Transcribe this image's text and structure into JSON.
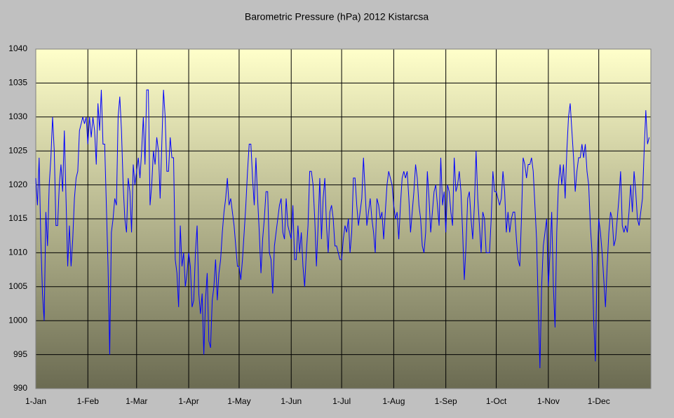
{
  "chart_data": {
    "type": "line",
    "title": "Barometric Pressure (hPa) 2012 Kistarcsa",
    "categories": [
      "1-Jan",
      null,
      null,
      null,
      null,
      null,
      null,
      null,
      null,
      null,
      null,
      null,
      null,
      null,
      null,
      null,
      null,
      null,
      null,
      null,
      null,
      null,
      null,
      null,
      null,
      null,
      null,
      null,
      null,
      null,
      null,
      "1-Feb",
      null,
      null,
      null,
      null,
      null,
      null,
      null,
      null,
      null,
      null,
      null,
      null,
      null,
      null,
      null,
      null,
      null,
      null,
      null,
      null,
      null,
      null,
      null,
      null,
      null,
      null,
      null,
      null,
      "1-Mar",
      null,
      null,
      null,
      null,
      null,
      null,
      null,
      null,
      null,
      null,
      null,
      null,
      null,
      null,
      null,
      null,
      null,
      null,
      null,
      null,
      null,
      null,
      null,
      null,
      null,
      null,
      null,
      null,
      null,
      null,
      "1-Apr",
      null,
      null,
      null,
      null,
      null,
      null,
      null,
      null,
      null,
      null,
      null,
      null,
      null,
      null,
      null,
      null,
      null,
      null,
      null,
      null,
      null,
      null,
      null,
      null,
      null,
      null,
      null,
      null,
      null,
      "1-May",
      null,
      null,
      null,
      null,
      null,
      null,
      null,
      null,
      null,
      null,
      null,
      null,
      null,
      null,
      null,
      null,
      null,
      null,
      null,
      null,
      null,
      null,
      null,
      null,
      null,
      null,
      null,
      null,
      null,
      null,
      "1-Jun",
      null,
      null,
      null,
      null,
      null,
      null,
      null,
      null,
      null,
      null,
      null,
      null,
      null,
      null,
      null,
      null,
      null,
      null,
      null,
      null,
      null,
      null,
      null,
      null,
      null,
      null,
      null,
      null,
      null,
      "1-Jul",
      null,
      null,
      null,
      null,
      null,
      null,
      null,
      null,
      null,
      null,
      null,
      null,
      null,
      null,
      null,
      null,
      null,
      null,
      null,
      null,
      null,
      null,
      null,
      null,
      null,
      null,
      null,
      null,
      null,
      null,
      "1-Aug",
      null,
      null,
      null,
      null,
      null,
      null,
      null,
      null,
      null,
      null,
      null,
      null,
      null,
      null,
      null,
      null,
      null,
      null,
      null,
      null,
      null,
      null,
      null,
      null,
      null,
      null,
      null,
      null,
      null,
      null,
      "1-Sep",
      null,
      null,
      null,
      null,
      null,
      null,
      null,
      null,
      null,
      null,
      null,
      null,
      null,
      null,
      null,
      null,
      null,
      null,
      null,
      null,
      null,
      null,
      null,
      null,
      null,
      null,
      null,
      null,
      null,
      "1-Oct",
      null,
      null,
      null,
      null,
      null,
      null,
      null,
      null,
      null,
      null,
      null,
      null,
      null,
      null,
      null,
      null,
      null,
      null,
      null,
      null,
      null,
      null,
      null,
      null,
      null,
      null,
      null,
      null,
      null,
      null,
      "1-Nov",
      null,
      null,
      null,
      null,
      null,
      null,
      null,
      null,
      null,
      null,
      null,
      null,
      null,
      null,
      null,
      null,
      null,
      null,
      null,
      null,
      null,
      null,
      null,
      null,
      null,
      null,
      null,
      null,
      null,
      "1-Dec",
      null,
      null,
      null,
      null,
      null,
      null,
      null,
      null,
      null,
      null,
      null,
      null,
      null,
      null,
      null,
      null,
      null,
      null,
      null,
      null,
      null,
      null,
      null,
      null,
      null,
      null,
      null,
      null,
      null,
      null
    ],
    "series": [
      {
        "name": "Pressure",
        "color": "#0000ff",
        "values": [
          1021,
          1017,
          1024,
          1012,
          1004,
          1000,
          1016,
          1011,
          1020,
          1024,
          1030,
          1025,
          1014,
          1014,
          1020,
          1023,
          1019,
          1028,
          1018,
          1008,
          1014,
          1008,
          1012,
          1018,
          1021,
          1022,
          1028,
          1029,
          1030,
          1029,
          1030,
          1026,
          1030,
          1027,
          1030,
          1028,
          1023,
          1032,
          1028,
          1034,
          1026,
          1026,
          1017,
          1008,
          995,
          1013,
          1015,
          1018,
          1017,
          1030,
          1033,
          1028,
          1020,
          1015,
          1013,
          1021,
          1019,
          1013,
          1023,
          1020,
          1022,
          1024,
          1021,
          1025,
          1030,
          1023,
          1034,
          1034,
          1017,
          1020,
          1025,
          1023,
          1027,
          1025,
          1018,
          1026,
          1034,
          1030,
          1022,
          1022,
          1027,
          1024,
          1024,
          1009,
          1007,
          1002,
          1014,
          1008,
          1010,
          1005,
          1007,
          1010,
          1008,
          1002,
          1003,
          1010,
          1014,
          1004,
          1001,
          1004,
          995,
          1003,
          1007,
          997,
          996,
          1003,
          1005,
          1009,
          1003,
          1007,
          1009,
          1013,
          1016,
          1018,
          1021,
          1017,
          1018,
          1016,
          1014,
          1011,
          1008,
          1008,
          1006,
          1009,
          1013,
          1017,
          1022,
          1026,
          1026,
          1021,
          1017,
          1024,
          1018,
          1013,
          1007,
          1012,
          1015,
          1019,
          1019,
          1010,
          1009,
          1004,
          1011,
          1013,
          1015,
          1017,
          1018,
          1013,
          1012,
          1018,
          1014,
          1013,
          1012,
          1017,
          1009,
          1009,
          1014,
          1010,
          1013,
          1008,
          1005,
          1010,
          1014,
          1022,
          1022,
          1020,
          1015,
          1008,
          1014,
          1021,
          1012,
          1018,
          1021,
          1014,
          1010,
          1016,
          1017,
          1015,
          1011,
          1011,
          1010,
          1009,
          1009,
          1012,
          1014,
          1013,
          1015,
          1010,
          1013,
          1021,
          1021,
          1017,
          1014,
          1016,
          1018,
          1024,
          1019,
          1014,
          1016,
          1018,
          1015,
          1013,
          1010,
          1018,
          1017,
          1015,
          1016,
          1012,
          1016,
          1020,
          1022,
          1021,
          1020,
          1017,
          1015,
          1016,
          1012,
          1017,
          1021,
          1022,
          1021,
          1022,
          1018,
          1013,
          1016,
          1019,
          1023,
          1021,
          1017,
          1015,
          1011,
          1010,
          1013,
          1022,
          1018,
          1013,
          1016,
          1019,
          1020,
          1017,
          1014,
          1024,
          1017,
          1019,
          1013,
          1020,
          1019,
          1016,
          1014,
          1024,
          1019,
          1020,
          1022,
          1019,
          1013,
          1006,
          1011,
          1018,
          1019,
          1015,
          1012,
          1017,
          1025,
          1018,
          1014,
          1010,
          1016,
          1015,
          1010,
          1010,
          1010,
          1015,
          1022,
          1019,
          1019,
          1018,
          1017,
          1018,
          1022,
          1019,
          1013,
          1016,
          1013,
          1015,
          1016,
          1016,
          1012,
          1009,
          1008,
          1015,
          1024,
          1023,
          1021,
          1023,
          1023,
          1024,
          1022,
          1017,
          1012,
          1002,
          993,
          1005,
          1011,
          1013,
          1015,
          1005,
          1010,
          1016,
          1005,
          999,
          1013,
          1020,
          1023,
          1020,
          1023,
          1018,
          1025,
          1030,
          1032,
          1028,
          1024,
          1019,
          1022,
          1024,
          1024,
          1026,
          1024,
          1026,
          1022,
          1020,
          1014,
          1010,
          1000,
          994,
          1008,
          1015,
          1013,
          1010,
          1006,
          1002,
          1008,
          1013,
          1016,
          1015,
          1011,
          1012,
          1015,
          1018,
          1022,
          1014,
          1013,
          1014,
          1013,
          1016,
          1020,
          1016,
          1022,
          1019,
          1015,
          1014,
          1016,
          1018,
          1025,
          1031,
          1026,
          1027
        ]
      }
    ],
    "ylim": [
      990,
      1040
    ],
    "yticks": [
      990,
      995,
      1000,
      1005,
      1010,
      1015,
      1020,
      1025,
      1030,
      1035,
      1040
    ],
    "grid": true
  }
}
